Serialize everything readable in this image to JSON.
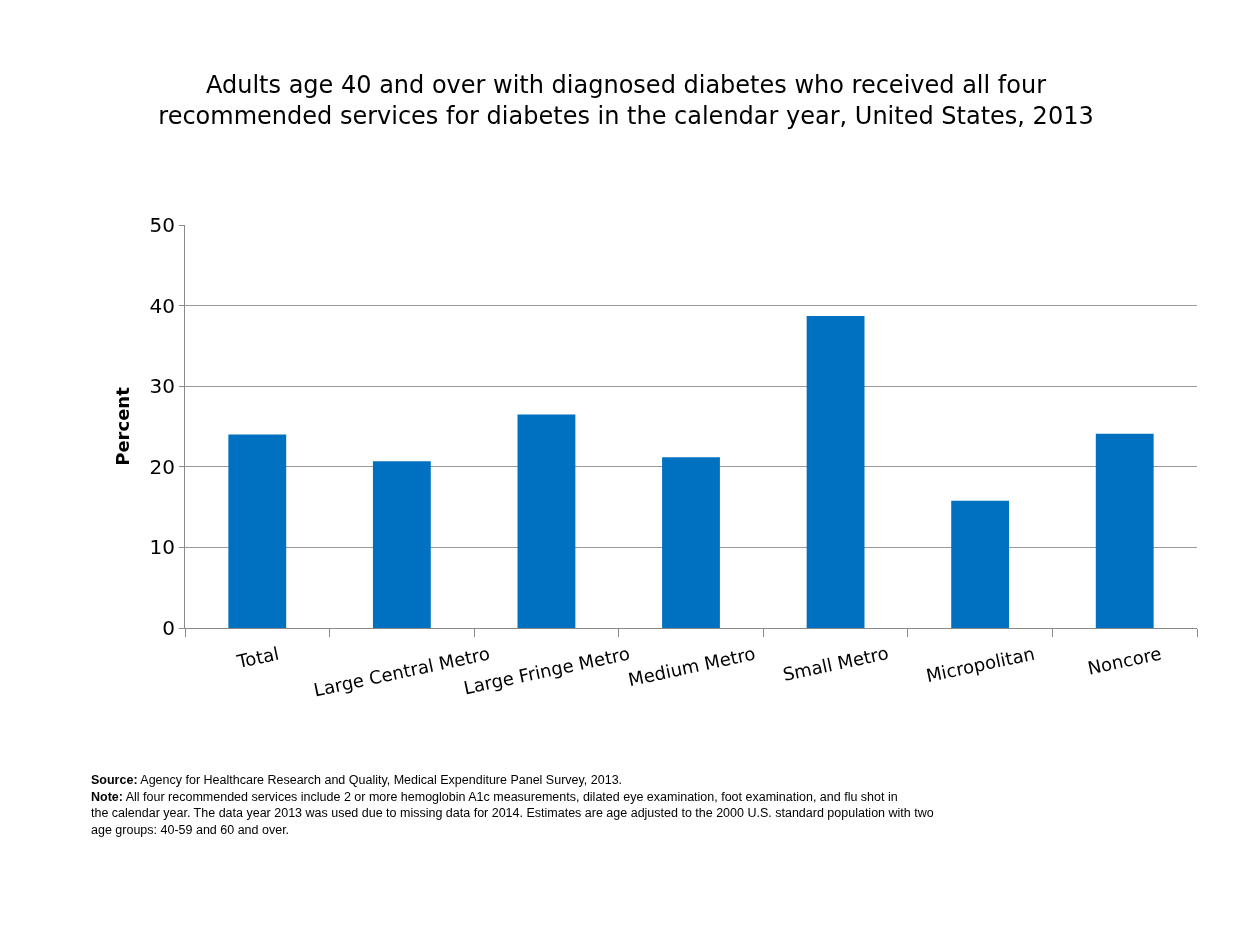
{
  "chart_data": {
    "type": "bar",
    "title": "Adults age 40 and over with diagnosed diabetes who received all four recommended services for diabetes in the calendar year, United States, 2013",
    "ylabel": "Percent",
    "categories": [
      "Total",
      "Large Central Metro",
      "Large Fringe Metro",
      "Medium Metro",
      "Small Metro",
      "Micropolitan",
      "Noncore"
    ],
    "values": [
      24.0,
      20.7,
      26.5,
      21.2,
      38.7,
      15.8,
      24.1
    ],
    "color": "#0070c0",
    "ylim": [
      0,
      50
    ],
    "yticks": [
      0,
      10,
      20,
      30,
      40,
      50
    ],
    "grid": "y",
    "annotations": [
      "**Source:** Agency for Healthcare Research and Quality, Medical Expenditure Panel Survey, 2013.",
      "**Note:** All four recommended services include 2 or more hemoglobin A1c measurements, dilated eye examination, foot examination, and flu shot in the calendar year. The data year 2013 was used due to missing data for 2014. Estimates are age adjusted to the 2000 U.S. standard population with two age groups: 40-59 and 60 and over."
    ]
  }
}
